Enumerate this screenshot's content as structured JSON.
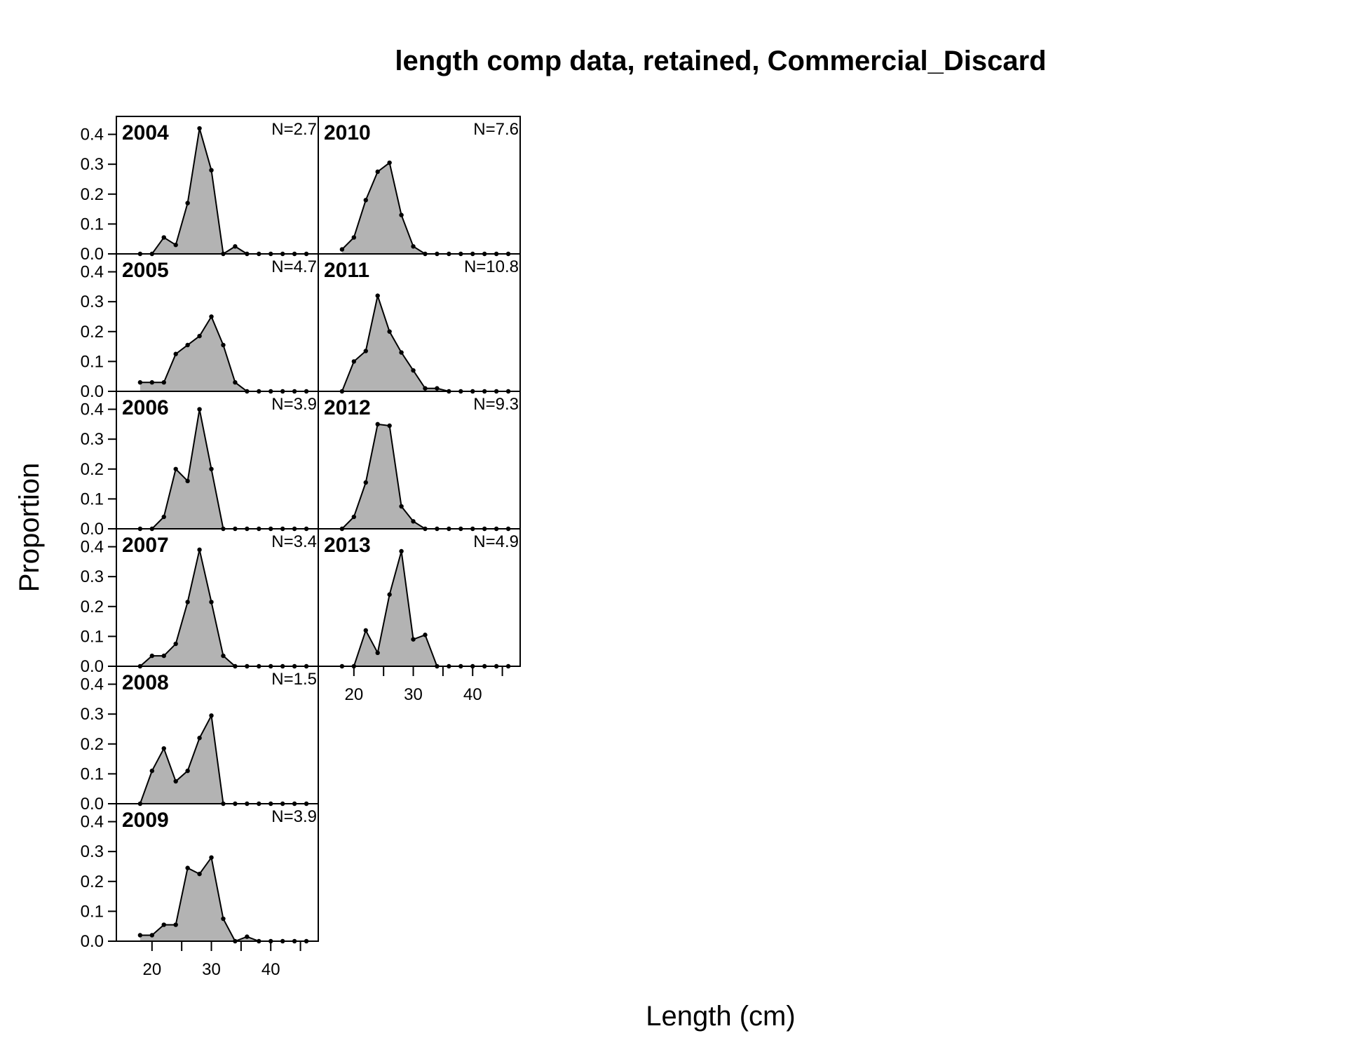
{
  "chart_data": {
    "type": "area",
    "title": "length comp data, retained, Commercial_Discard",
    "xlabel": "Length (cm)",
    "ylabel": "Proportion",
    "xlim": [
      14,
      48
    ],
    "ylim": [
      0,
      0.46
    ],
    "x_ticks": [
      20,
      30,
      40
    ],
    "y_ticks": [
      0.0,
      0.1,
      0.2,
      0.3,
      0.4
    ],
    "y_tick_labels": [
      "0.0",
      "0.1",
      "0.2",
      "0.3",
      "0.4"
    ],
    "x_tick_labels": [
      "20",
      "30",
      "40"
    ],
    "fill_color": "#b3b3b3",
    "x": [
      18,
      20,
      22,
      24,
      26,
      28,
      30,
      32,
      34,
      36,
      38,
      40,
      42,
      44,
      46
    ],
    "panels": [
      {
        "year": "2004",
        "n_label": "N=2.7",
        "col": 0,
        "row": 0,
        "values": [
          0,
          0,
          0.055,
          0.03,
          0.17,
          0.42,
          0.28,
          0,
          0.025,
          0,
          0,
          0,
          0,
          0,
          0
        ]
      },
      {
        "year": "2005",
        "n_label": "N=4.7",
        "col": 0,
        "row": 1,
        "values": [
          0.03,
          0.03,
          0.03,
          0.125,
          0.155,
          0.185,
          0.25,
          0.155,
          0.03,
          0,
          0,
          0,
          0,
          0,
          0
        ]
      },
      {
        "year": "2006",
        "n_label": "N=3.9",
        "col": 0,
        "row": 2,
        "values": [
          0,
          0,
          0.04,
          0.2,
          0.16,
          0.4,
          0.2,
          0,
          0,
          0,
          0,
          0,
          0,
          0,
          0
        ]
      },
      {
        "year": "2007",
        "n_label": "N=3.4",
        "col": 0,
        "row": 3,
        "values": [
          0,
          0.035,
          0.035,
          0.075,
          0.215,
          0.39,
          0.215,
          0.035,
          0,
          0,
          0,
          0,
          0,
          0,
          0
        ]
      },
      {
        "year": "2008",
        "n_label": "N=1.5",
        "col": 0,
        "row": 4,
        "values": [
          0,
          0.11,
          0.185,
          0.075,
          0.11,
          0.22,
          0.295,
          0,
          0,
          0,
          0,
          0,
          0,
          0,
          0
        ]
      },
      {
        "year": "2009",
        "n_label": "N=3.9",
        "col": 0,
        "row": 5,
        "values": [
          0.02,
          0.02,
          0.055,
          0.055,
          0.245,
          0.225,
          0.28,
          0.075,
          0,
          0.015,
          0,
          0,
          0,
          0,
          0
        ]
      },
      {
        "year": "2010",
        "n_label": "N=7.6",
        "col": 1,
        "row": 0,
        "values": [
          0.015,
          0.055,
          0.18,
          0.275,
          0.305,
          0.13,
          0.025,
          0,
          0,
          0,
          0,
          0,
          0,
          0,
          0
        ]
      },
      {
        "year": "2011",
        "n_label": "N=10.8",
        "col": 1,
        "row": 1,
        "values": [
          0,
          0.1,
          0.135,
          0.32,
          0.2,
          0.13,
          0.07,
          0.01,
          0.01,
          0,
          0,
          0,
          0,
          0,
          0
        ]
      },
      {
        "year": "2012",
        "n_label": "N=9.3",
        "col": 1,
        "row": 2,
        "values": [
          0,
          0.04,
          0.155,
          0.35,
          0.345,
          0.075,
          0.025,
          0,
          0,
          0,
          0,
          0,
          0,
          0,
          0
        ]
      },
      {
        "year": "2013",
        "n_label": "N=4.9",
        "col": 1,
        "row": 3,
        "values": [
          0,
          0,
          0.12,
          0.045,
          0.24,
          0.385,
          0.09,
          0.105,
          0,
          0,
          0,
          0,
          0,
          0,
          0
        ]
      }
    ]
  }
}
